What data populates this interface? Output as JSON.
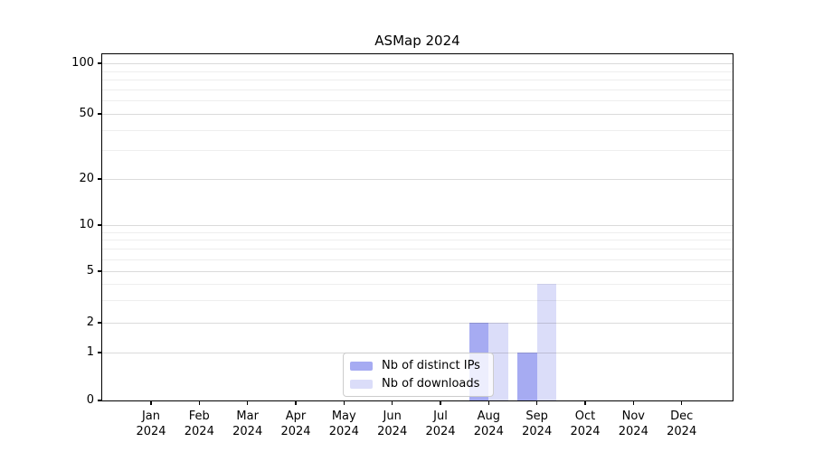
{
  "chart_data": {
    "type": "bar",
    "title": "ASMap 2024",
    "categories": [
      "Jan 2024",
      "Feb 2024",
      "Mar 2024",
      "Apr 2024",
      "May 2024",
      "Jun 2024",
      "Jul 2024",
      "Aug 2024",
      "Sep 2024",
      "Oct 2024",
      "Nov 2024",
      "Dec 2024"
    ],
    "series": [
      {
        "name": "Nb of distinct IPs",
        "color": "#a6abf2",
        "values": [
          0,
          0,
          0,
          0,
          0,
          0,
          0,
          2,
          1,
          0,
          0,
          0
        ]
      },
      {
        "name": "Nb of downloads",
        "color": "#dbddf9",
        "values": [
          0,
          0,
          0,
          0,
          0,
          0,
          0,
          2,
          4,
          0,
          0,
          0
        ]
      }
    ],
    "xlabel": "",
    "ylabel": "",
    "yscale": "symlog",
    "yticks": [
      0,
      1,
      2,
      5,
      10,
      20,
      50,
      100
    ],
    "minor_gridlines": [
      3,
      4,
      6,
      7,
      8,
      9,
      30,
      40,
      60,
      70,
      80,
      90
    ],
    "ylim": [
      0,
      113
    ],
    "grid": "horizontal major and minor gridlines, drawn over bars",
    "legend_position": "inside bottom-center"
  },
  "colors": {
    "background": "#ffffff",
    "spine": "#000000",
    "text": "#000000",
    "grid_major": "#dcdcdc",
    "grid_minor": "#eeeeee",
    "legend_border": "#cccccc"
  }
}
